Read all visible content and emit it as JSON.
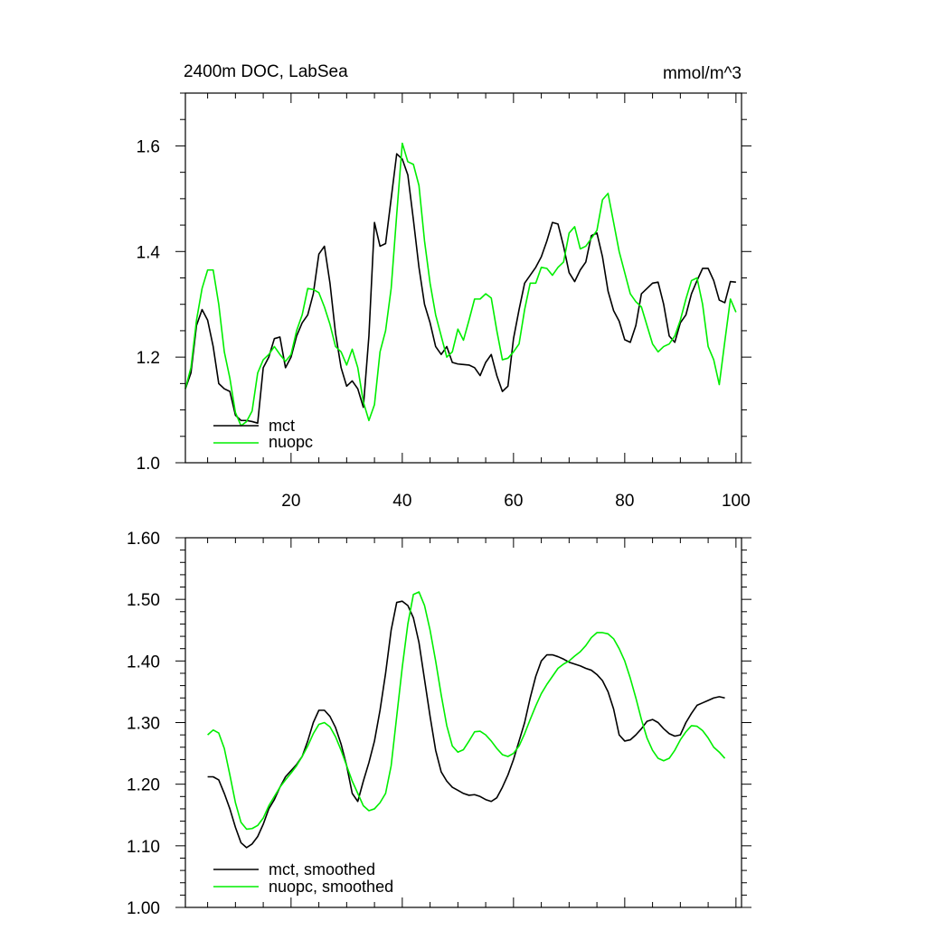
{
  "colors": {
    "mct": "#000000",
    "nuopc": "#00ee00"
  },
  "chart_data": [
    {
      "type": "line",
      "title": "2400m DOC, LabSea",
      "units": "mmol/m^3",
      "xlim": [
        1,
        101
      ],
      "ylim": [
        1.0,
        1.7
      ],
      "x_ticks": [
        20,
        40,
        60,
        80,
        100
      ],
      "y_ticks": [
        1.0,
        1.2,
        1.4,
        1.6
      ],
      "y_tick_labels": [
        "1.0",
        "1.2",
        "1.4",
        "1.6"
      ],
      "legend_position": "bottom-left",
      "series": [
        {
          "name": "mct",
          "color": "#000000",
          "values": [
            1.14,
            1.17,
            1.26,
            1.29,
            1.27,
            1.22,
            1.15,
            1.14,
            1.135,
            1.09,
            1.08,
            1.08,
            1.078,
            1.075,
            1.18,
            1.2,
            1.235,
            1.238,
            1.18,
            1.2,
            1.24,
            1.265,
            1.28,
            1.32,
            1.395,
            1.41,
            1.34,
            1.245,
            1.18,
            1.145,
            1.155,
            1.14,
            1.105,
            1.24,
            1.455,
            1.41,
            1.415,
            1.5,
            1.585,
            1.575,
            1.545,
            1.46,
            1.37,
            1.3,
            1.265,
            1.22,
            1.205,
            1.22,
            1.19,
            1.187,
            1.186,
            1.185,
            1.18,
            1.165,
            1.19,
            1.205,
            1.165,
            1.135,
            1.145,
            1.235,
            1.29,
            1.34,
            1.355,
            1.37,
            1.39,
            1.42,
            1.455,
            1.452,
            1.41,
            1.36,
            1.343,
            1.365,
            1.38,
            1.43,
            1.435,
            1.39,
            1.325,
            1.288,
            1.268,
            1.233,
            1.228,
            1.26,
            1.32,
            1.33,
            1.34,
            1.342,
            1.3,
            1.24,
            1.228,
            1.265,
            1.28,
            1.32,
            1.345,
            1.368,
            1.368,
            1.345,
            1.308,
            1.303,
            1.343,
            1.342
          ]
        },
        {
          "name": "nuopc",
          "color": "#00ee00",
          "values": [
            1.14,
            1.18,
            1.27,
            1.33,
            1.365,
            1.365,
            1.3,
            1.21,
            1.16,
            1.095,
            1.07,
            1.078,
            1.098,
            1.17,
            1.195,
            1.205,
            1.22,
            1.205,
            1.192,
            1.205,
            1.25,
            1.28,
            1.33,
            1.328,
            1.322,
            1.295,
            1.262,
            1.22,
            1.21,
            1.185,
            1.215,
            1.18,
            1.115,
            1.08,
            1.11,
            1.21,
            1.25,
            1.33,
            1.47,
            1.605,
            1.57,
            1.565,
            1.525,
            1.42,
            1.34,
            1.28,
            1.24,
            1.2,
            1.21,
            1.253,
            1.232,
            1.27,
            1.31,
            1.31,
            1.32,
            1.312,
            1.25,
            1.195,
            1.198,
            1.21,
            1.225,
            1.29,
            1.34,
            1.34,
            1.37,
            1.368,
            1.355,
            1.37,
            1.38,
            1.435,
            1.447,
            1.405,
            1.41,
            1.425,
            1.44,
            1.498,
            1.51,
            1.455,
            1.4,
            1.36,
            1.32,
            1.305,
            1.295,
            1.26,
            1.225,
            1.21,
            1.22,
            1.225,
            1.24,
            1.27,
            1.31,
            1.345,
            1.35,
            1.3,
            1.22,
            1.195,
            1.148,
            1.23,
            1.31,
            1.285
          ]
        }
      ]
    },
    {
      "type": "line",
      "title": "",
      "xlim": [
        1,
        101
      ],
      "ylim": [
        1.0,
        1.6
      ],
      "x_ticks": [
        20,
        40,
        60,
        80,
        100
      ],
      "y_ticks": [
        1.0,
        1.1,
        1.2,
        1.3,
        1.4,
        1.5,
        1.6
      ],
      "y_tick_labels": [
        "1.00",
        "1.10",
        "1.20",
        "1.30",
        "1.40",
        "1.50",
        "1.60"
      ],
      "legend_position": "bottom-left",
      "series": [
        {
          "name": "mct, smoothed",
          "color": "#000000",
          "x": [
            5,
            6,
            7,
            8,
            9,
            10,
            11,
            12,
            13,
            14,
            15,
            16,
            17,
            18,
            19,
            20,
            21,
            22,
            23,
            24,
            25,
            26,
            27,
            28,
            29,
            30,
            31,
            32,
            33,
            34,
            35,
            36,
            37,
            38,
            39,
            40,
            41,
            42,
            43,
            44,
            45,
            46,
            47,
            48,
            49,
            50,
            51,
            52,
            53,
            54,
            55,
            56,
            57,
            58,
            59,
            60,
            61,
            62,
            63,
            64,
            65,
            66,
            67,
            68,
            69,
            70,
            71,
            72,
            73,
            74,
            75,
            76,
            77,
            78,
            79,
            80,
            81,
            82,
            83,
            84,
            85,
            86,
            87,
            88,
            89,
            90,
            91,
            92,
            93,
            94,
            95,
            96,
            97,
            98
          ],
          "values": [
            1.212,
            1.212,
            1.207,
            1.185,
            1.16,
            1.13,
            1.105,
            1.097,
            1.103,
            1.115,
            1.135,
            1.16,
            1.175,
            1.195,
            1.212,
            1.222,
            1.232,
            1.245,
            1.27,
            1.3,
            1.32,
            1.32,
            1.31,
            1.292,
            1.265,
            1.23,
            1.185,
            1.172,
            1.205,
            1.235,
            1.27,
            1.32,
            1.38,
            1.45,
            1.495,
            1.497,
            1.49,
            1.47,
            1.43,
            1.37,
            1.31,
            1.255,
            1.22,
            1.205,
            1.195,
            1.19,
            1.185,
            1.182,
            1.183,
            1.18,
            1.175,
            1.172,
            1.178,
            1.195,
            1.215,
            1.24,
            1.27,
            1.3,
            1.34,
            1.375,
            1.4,
            1.41,
            1.41,
            1.407,
            1.403,
            1.398,
            1.395,
            1.392,
            1.388,
            1.385,
            1.378,
            1.368,
            1.35,
            1.322,
            1.28,
            1.27,
            1.272,
            1.28,
            1.29,
            1.302,
            1.305,
            1.3,
            1.29,
            1.282,
            1.278,
            1.28,
            1.3,
            1.315,
            1.328,
            1.332,
            1.336,
            1.34,
            1.342,
            1.34
          ]
        },
        {
          "name": "nuopc, smoothed",
          "color": "#00ee00",
          "x": [
            5,
            6,
            7,
            8,
            9,
            10,
            11,
            12,
            13,
            14,
            15,
            16,
            17,
            18,
            19,
            20,
            21,
            22,
            23,
            24,
            25,
            26,
            27,
            28,
            29,
            30,
            31,
            32,
            33,
            34,
            35,
            36,
            37,
            38,
            39,
            40,
            41,
            42,
            43,
            44,
            45,
            46,
            47,
            48,
            49,
            50,
            51,
            52,
            53,
            54,
            55,
            56,
            57,
            58,
            59,
            60,
            61,
            62,
            63,
            64,
            65,
            66,
            67,
            68,
            69,
            70,
            71,
            72,
            73,
            74,
            75,
            76,
            77,
            78,
            79,
            80,
            81,
            82,
            83,
            84,
            85,
            86,
            87,
            88,
            89,
            90,
            91,
            92,
            93,
            94,
            95,
            96,
            97,
            98
          ],
          "values": [
            1.28,
            1.288,
            1.283,
            1.258,
            1.215,
            1.17,
            1.138,
            1.127,
            1.128,
            1.133,
            1.145,
            1.165,
            1.18,
            1.195,
            1.207,
            1.218,
            1.23,
            1.245,
            1.262,
            1.282,
            1.297,
            1.3,
            1.293,
            1.277,
            1.255,
            1.23,
            1.205,
            1.185,
            1.165,
            1.157,
            1.16,
            1.17,
            1.185,
            1.23,
            1.31,
            1.39,
            1.46,
            1.508,
            1.512,
            1.49,
            1.45,
            1.4,
            1.345,
            1.295,
            1.262,
            1.252,
            1.256,
            1.27,
            1.285,
            1.286,
            1.28,
            1.27,
            1.258,
            1.248,
            1.245,
            1.25,
            1.262,
            1.282,
            1.305,
            1.327,
            1.347,
            1.362,
            1.375,
            1.388,
            1.395,
            1.4,
            1.408,
            1.415,
            1.425,
            1.438,
            1.446,
            1.446,
            1.444,
            1.436,
            1.42,
            1.4,
            1.372,
            1.34,
            1.305,
            1.275,
            1.255,
            1.242,
            1.238,
            1.242,
            1.255,
            1.272,
            1.285,
            1.295,
            1.294,
            1.287,
            1.275,
            1.26,
            1.252,
            1.242
          ]
        }
      ]
    }
  ]
}
